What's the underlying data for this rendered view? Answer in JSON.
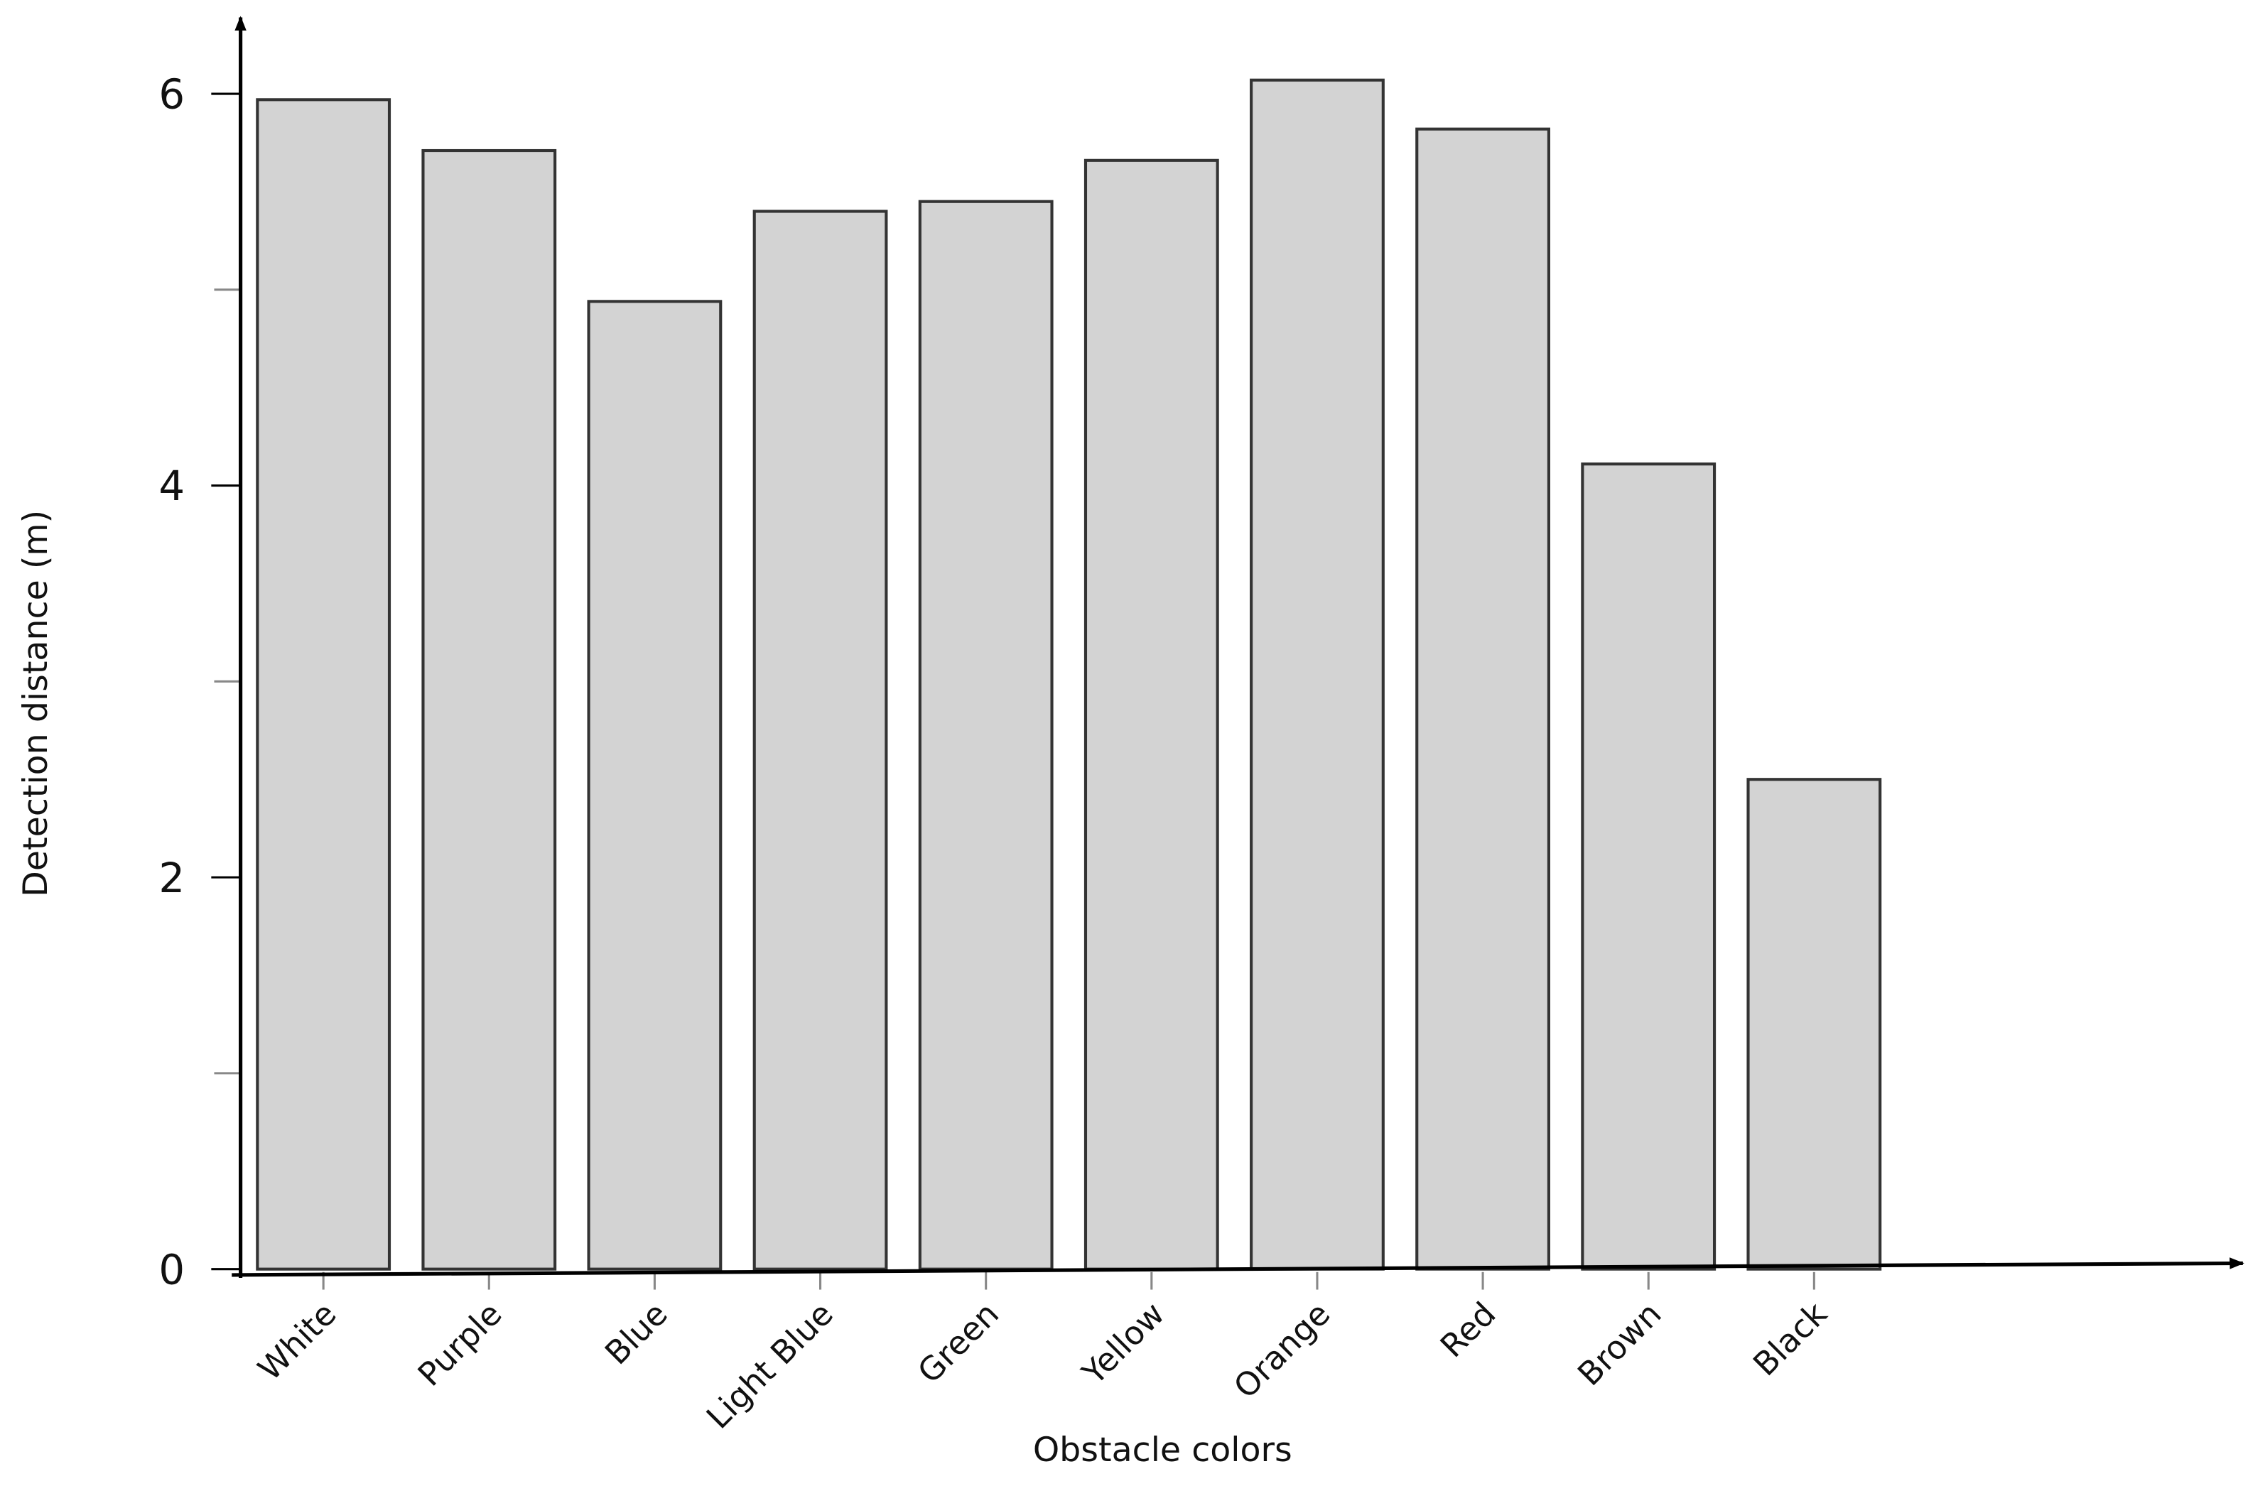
{
  "chart_data": {
    "type": "bar",
    "categories": [
      "White",
      "Purple",
      "Blue",
      "Light Blue",
      "Green",
      "Yellow",
      "Orange",
      "Red",
      "Brown",
      "Black"
    ],
    "values": [
      5.97,
      5.71,
      4.94,
      5.4,
      5.45,
      5.66,
      6.07,
      5.82,
      4.11,
      2.5
    ],
    "color": "#d3d3d3",
    "ylim": [
      0,
      6.3
    ],
    "yticks": [
      0,
      2,
      4,
      6
    ],
    "minor_yticks": [
      1,
      3,
      5
    ],
    "y_label": "Detection distance (m)",
    "x_label": "Obstacle colors"
  }
}
